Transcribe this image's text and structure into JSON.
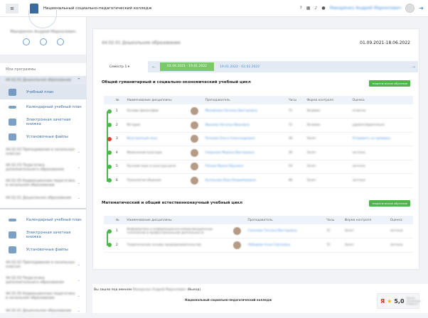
{
  "header": {
    "title": "Национальный социально-педагогический колледж",
    "user": "Макаренко Андрей Маркелович"
  },
  "sidebar": {
    "user_name": "Макаренко Андрей Маркелович",
    "my_programs": "Мои программы",
    "programs": [
      {
        "name": "44.02.01 Дошкольное образование",
        "expanded": true,
        "items": [
          {
            "label": "Учебный план",
            "active": true
          },
          {
            "label": "Календарный учебный план"
          },
          {
            "label": "Электронная зачетная книжка"
          },
          {
            "label": "Установочные файлы"
          }
        ]
      },
      {
        "name": "44.02.02 Преподавание в начальных классах"
      },
      {
        "name": "44.02.03 Педагогика дополнительного образования"
      },
      {
        "name": "44.02.05 Коррекционная педагогика в начальном образовании"
      },
      {
        "name": "44.02.01 Дошкольное образование"
      }
    ],
    "items2": [
      {
        "label": "Календарный учебный план"
      },
      {
        "label": "Электронная зачетная книжка"
      },
      {
        "label": "Установочные файлы"
      }
    ],
    "programs2": [
      {
        "name": "44.02.02 Преподавание в начальных классах"
      },
      {
        "name": "44.02.03 Педагогика дополнительного образования"
      },
      {
        "name": "44.02.05 Коррекционная педагогика в начальном образовании"
      },
      {
        "name": "44.02.01 Дошкольное образование"
      }
    ]
  },
  "main": {
    "program_title": "44.02.01 Дошкольное образование",
    "date_range": "01.09.2021-18.06.2022",
    "semester": "Семестр 1 ▾",
    "periods": [
      "01.09.2021 - 19.01.2022",
      "19.01.2022 - 02.02.2022"
    ],
    "columns": [
      "№",
      "Наименование дисциплины",
      "Преподаватель",
      "Часы",
      "Форма контроля",
      "Оценка"
    ],
    "sections": [
      {
        "title": "Общий гуманитарный и социально-экономический учебный цикл",
        "badge": "теоретическое обучение",
        "rows": [
          {
            "n": "1",
            "name": "Основы философии",
            "teacher": "Михайлова Наталья Викторовна",
            "hours": "72",
            "control": "Экзамен",
            "grade": "отлично",
            "status": "green"
          },
          {
            "n": "2",
            "name": "История",
            "teacher": "Иванова Наталья Ивановна",
            "hours": "72",
            "control": "Экзамен",
            "grade": "удовлетворительно",
            "status": "green"
          },
          {
            "n": "3",
            "name": "Иностранный язык",
            "teacher": "Петрова Ольга Александровна",
            "hours": "36",
            "control": "Зачет",
            "grade": "Отправить на проверку",
            "status": "red"
          },
          {
            "n": "4",
            "name": "Физическая культура",
            "teacher": "Смирнова Марина Викторовна",
            "hours": "36",
            "control": "Зачет",
            "grade": "зачтено",
            "status": "green"
          },
          {
            "n": "5",
            "name": "Русский язык и культура речи",
            "teacher": "Попова Ирина Юрьевна",
            "hours": "54",
            "control": "Зачет",
            "grade": "зачтено",
            "status": "green"
          },
          {
            "n": "6",
            "name": "Психология общения",
            "teacher": "Кузнецова Вера Владимировна",
            "hours": "48",
            "control": "Зачет",
            "grade": "зачтено",
            "status": "green"
          }
        ]
      },
      {
        "title": "Математический и общий естественнонаучный учебный цикл",
        "badge": "теоретическое обучение",
        "rows": [
          {
            "n": "1",
            "name": "Информатика и информационно-коммуникационные технологии в профессиональной деятельности",
            "teacher": "Соколова Татьяна Викторовна",
            "hours": "72",
            "control": "Зачет",
            "grade": "зачтено",
            "status": "green"
          },
          {
            "n": "2",
            "name": "Теоретические основы предпринимательства",
            "teacher": "Лебедева Анна Сергеевна",
            "hours": "72",
            "control": "Зачет",
            "grade": "зачтено",
            "status": "green"
          }
        ]
      }
    ]
  },
  "footer": {
    "logged_as": "Вы зашли под именем",
    "user": "Макаренко Андрей Маркелович",
    "logout": "(Выход)",
    "college": "Национальный социально-педагогический колледж",
    "rating": "5,0",
    "rating_caption": "Рейтинг организации в Яндексе"
  },
  "colors": {
    "green": "#4cb748",
    "red": "#e53935",
    "link": "#4a90d9"
  }
}
